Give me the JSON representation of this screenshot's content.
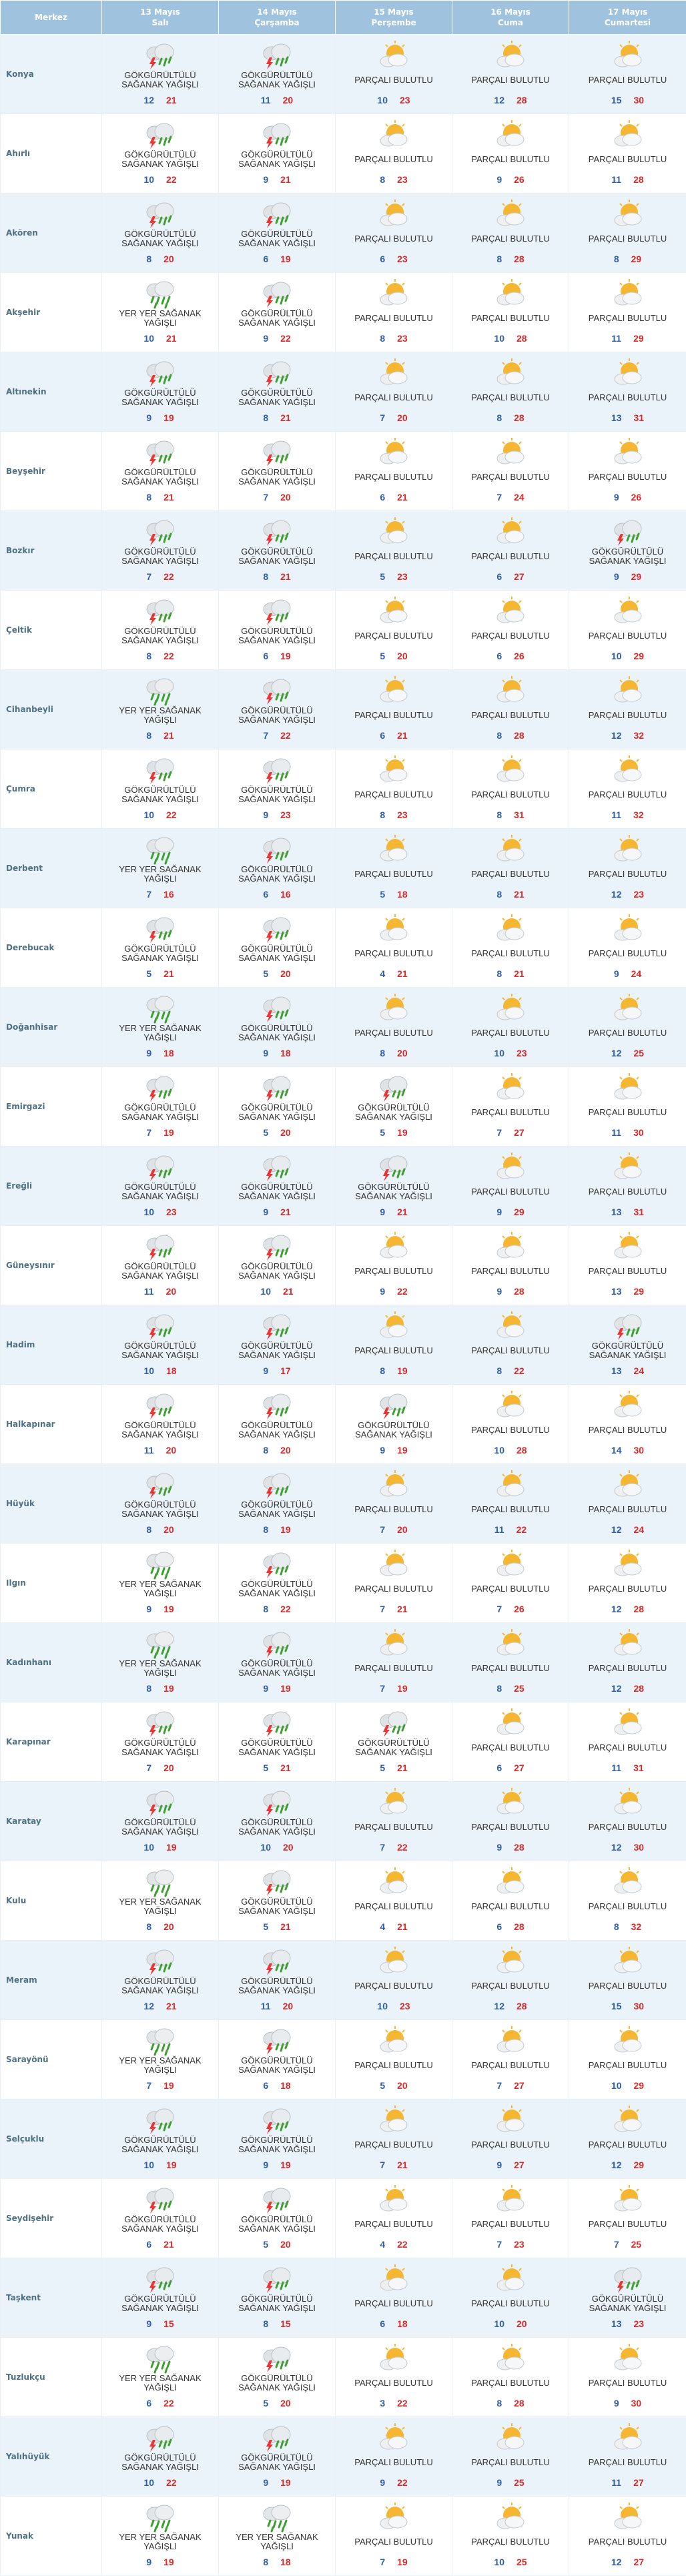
{
  "header": {
    "center_label": "Merkez",
    "days": [
      {
        "date": "13 Mayıs",
        "weekday": "Salı"
      },
      {
        "date": "14 Mayıs",
        "weekday": "Çarşamba"
      },
      {
        "date": "15 Mayıs",
        "weekday": "Perşembe"
      },
      {
        "date": "16 Mayıs",
        "weekday": "Cuma"
      },
      {
        "date": "17 Mayıs",
        "weekday": "Cumartesi"
      }
    ]
  },
  "conditions": {
    "thunder": "GÖKGÜRÜLTÜLÜ SAĞANAK YAĞIŞLI",
    "partly": "PARÇALI BULUTLU",
    "scattered": "YER YER SAĞANAK YAĞIŞLI"
  },
  "icons": {
    "thunder": "thunderstorm-icon",
    "partly": "partly-cloudy-icon",
    "scattered": "rain-showers-icon"
  },
  "rows": [
    {
      "city": "Konya",
      "days": [
        {
          "c": "thunder",
          "min": "12",
          "max": "21"
        },
        {
          "c": "thunder",
          "min": "11",
          "max": "20"
        },
        {
          "c": "partly",
          "min": "10",
          "max": "23"
        },
        {
          "c": "partly",
          "min": "12",
          "max": "28"
        },
        {
          "c": "partly",
          "min": "15",
          "max": "30"
        }
      ]
    },
    {
      "city": "Ahırlı",
      "days": [
        {
          "c": "thunder",
          "min": "10",
          "max": "22"
        },
        {
          "c": "thunder",
          "min": "9",
          "max": "21"
        },
        {
          "c": "partly",
          "min": "8",
          "max": "23"
        },
        {
          "c": "partly",
          "min": "9",
          "max": "26"
        },
        {
          "c": "partly",
          "min": "11",
          "max": "28"
        }
      ]
    },
    {
      "city": "Akören",
      "days": [
        {
          "c": "thunder",
          "min": "8",
          "max": "20"
        },
        {
          "c": "thunder",
          "min": "6",
          "max": "19"
        },
        {
          "c": "partly",
          "min": "6",
          "max": "23"
        },
        {
          "c": "partly",
          "min": "8",
          "max": "28"
        },
        {
          "c": "partly",
          "min": "8",
          "max": "29"
        }
      ]
    },
    {
      "city": "Akşehir",
      "days": [
        {
          "c": "scattered",
          "min": "10",
          "max": "21"
        },
        {
          "c": "thunder",
          "min": "9",
          "max": "22"
        },
        {
          "c": "partly",
          "min": "8",
          "max": "23"
        },
        {
          "c": "partly",
          "min": "10",
          "max": "28"
        },
        {
          "c": "partly",
          "min": "11",
          "max": "29"
        }
      ]
    },
    {
      "city": "Altınekin",
      "days": [
        {
          "c": "thunder",
          "min": "9",
          "max": "19"
        },
        {
          "c": "thunder",
          "min": "8",
          "max": "21"
        },
        {
          "c": "partly",
          "min": "7",
          "max": "20"
        },
        {
          "c": "partly",
          "min": "8",
          "max": "28"
        },
        {
          "c": "partly",
          "min": "13",
          "max": "31"
        }
      ]
    },
    {
      "city": "Beyşehir",
      "days": [
        {
          "c": "thunder",
          "min": "8",
          "max": "21"
        },
        {
          "c": "thunder",
          "min": "7",
          "max": "20"
        },
        {
          "c": "partly",
          "min": "6",
          "max": "21"
        },
        {
          "c": "partly",
          "min": "7",
          "max": "24"
        },
        {
          "c": "partly",
          "min": "9",
          "max": "26"
        }
      ]
    },
    {
      "city": "Bozkır",
      "days": [
        {
          "c": "thunder",
          "min": "7",
          "max": "22"
        },
        {
          "c": "thunder",
          "min": "8",
          "max": "21"
        },
        {
          "c": "partly",
          "min": "5",
          "max": "23"
        },
        {
          "c": "partly",
          "min": "6",
          "max": "27"
        },
        {
          "c": "thunder",
          "min": "9",
          "max": "29"
        }
      ]
    },
    {
      "city": "Çeltik",
      "days": [
        {
          "c": "thunder",
          "min": "8",
          "max": "22"
        },
        {
          "c": "thunder",
          "min": "6",
          "max": "19"
        },
        {
          "c": "partly",
          "min": "5",
          "max": "20"
        },
        {
          "c": "partly",
          "min": "6",
          "max": "26"
        },
        {
          "c": "partly",
          "min": "10",
          "max": "29"
        }
      ]
    },
    {
      "city": "Cihanbeyli",
      "days": [
        {
          "c": "scattered",
          "min": "8",
          "max": "21"
        },
        {
          "c": "thunder",
          "min": "7",
          "max": "22"
        },
        {
          "c": "partly",
          "min": "6",
          "max": "21"
        },
        {
          "c": "partly",
          "min": "8",
          "max": "28"
        },
        {
          "c": "partly",
          "min": "12",
          "max": "32"
        }
      ]
    },
    {
      "city": "Çumra",
      "days": [
        {
          "c": "thunder",
          "min": "10",
          "max": "22"
        },
        {
          "c": "thunder",
          "min": "9",
          "max": "23"
        },
        {
          "c": "partly",
          "min": "8",
          "max": "23"
        },
        {
          "c": "partly",
          "min": "8",
          "max": "31"
        },
        {
          "c": "partly",
          "min": "11",
          "max": "32"
        }
      ]
    },
    {
      "city": "Derbent",
      "days": [
        {
          "c": "scattered",
          "min": "7",
          "max": "16"
        },
        {
          "c": "thunder",
          "min": "6",
          "max": "16"
        },
        {
          "c": "partly",
          "min": "5",
          "max": "18"
        },
        {
          "c": "partly",
          "min": "8",
          "max": "21"
        },
        {
          "c": "partly",
          "min": "12",
          "max": "23"
        }
      ]
    },
    {
      "city": "Derebucak",
      "days": [
        {
          "c": "thunder",
          "min": "5",
          "max": "21"
        },
        {
          "c": "thunder",
          "min": "5",
          "max": "20"
        },
        {
          "c": "partly",
          "min": "4",
          "max": "21"
        },
        {
          "c": "partly",
          "min": "8",
          "max": "21"
        },
        {
          "c": "partly",
          "min": "9",
          "max": "24"
        }
      ]
    },
    {
      "city": "Doğanhisar",
      "days": [
        {
          "c": "scattered",
          "min": "9",
          "max": "18"
        },
        {
          "c": "thunder",
          "min": "9",
          "max": "18"
        },
        {
          "c": "partly",
          "min": "8",
          "max": "20"
        },
        {
          "c": "partly",
          "min": "10",
          "max": "23"
        },
        {
          "c": "partly",
          "min": "12",
          "max": "25"
        }
      ]
    },
    {
      "city": "Emirgazi",
      "days": [
        {
          "c": "thunder",
          "min": "7",
          "max": "19"
        },
        {
          "c": "thunder",
          "min": "5",
          "max": "20"
        },
        {
          "c": "thunder",
          "min": "5",
          "max": "19"
        },
        {
          "c": "partly",
          "min": "7",
          "max": "27"
        },
        {
          "c": "partly",
          "min": "11",
          "max": "30"
        }
      ]
    },
    {
      "city": "Ereğli",
      "days": [
        {
          "c": "thunder",
          "min": "10",
          "max": "23"
        },
        {
          "c": "thunder",
          "min": "9",
          "max": "21"
        },
        {
          "c": "thunder",
          "min": "9",
          "max": "21"
        },
        {
          "c": "partly",
          "min": "9",
          "max": "29"
        },
        {
          "c": "partly",
          "min": "13",
          "max": "31"
        }
      ]
    },
    {
      "city": "Güneysınır",
      "days": [
        {
          "c": "thunder",
          "min": "11",
          "max": "20"
        },
        {
          "c": "thunder",
          "min": "10",
          "max": "21"
        },
        {
          "c": "partly",
          "min": "9",
          "max": "22"
        },
        {
          "c": "partly",
          "min": "9",
          "max": "28"
        },
        {
          "c": "partly",
          "min": "13",
          "max": "29"
        }
      ]
    },
    {
      "city": "Hadim",
      "days": [
        {
          "c": "thunder",
          "min": "10",
          "max": "18"
        },
        {
          "c": "thunder",
          "min": "9",
          "max": "17"
        },
        {
          "c": "partly",
          "min": "8",
          "max": "19"
        },
        {
          "c": "partly",
          "min": "8",
          "max": "22"
        },
        {
          "c": "thunder",
          "min": "13",
          "max": "24"
        }
      ]
    },
    {
      "city": "Halkapınar",
      "days": [
        {
          "c": "thunder",
          "min": "11",
          "max": "20"
        },
        {
          "c": "thunder",
          "min": "8",
          "max": "20"
        },
        {
          "c": "thunder",
          "min": "9",
          "max": "19"
        },
        {
          "c": "partly",
          "min": "10",
          "max": "28"
        },
        {
          "c": "partly",
          "min": "14",
          "max": "30"
        }
      ]
    },
    {
      "city": "Hüyük",
      "days": [
        {
          "c": "thunder",
          "min": "8",
          "max": "20"
        },
        {
          "c": "thunder",
          "min": "8",
          "max": "19"
        },
        {
          "c": "partly",
          "min": "7",
          "max": "20"
        },
        {
          "c": "partly",
          "min": "11",
          "max": "22"
        },
        {
          "c": "partly",
          "min": "12",
          "max": "24"
        }
      ]
    },
    {
      "city": "Ilgın",
      "days": [
        {
          "c": "scattered",
          "min": "9",
          "max": "19"
        },
        {
          "c": "thunder",
          "min": "8",
          "max": "22"
        },
        {
          "c": "partly",
          "min": "7",
          "max": "21"
        },
        {
          "c": "partly",
          "min": "7",
          "max": "26"
        },
        {
          "c": "partly",
          "min": "12",
          "max": "28"
        }
      ]
    },
    {
      "city": "Kadınhanı",
      "days": [
        {
          "c": "scattered",
          "min": "8",
          "max": "19"
        },
        {
          "c": "thunder",
          "min": "9",
          "max": "19"
        },
        {
          "c": "partly",
          "min": "7",
          "max": "19"
        },
        {
          "c": "partly",
          "min": "8",
          "max": "25"
        },
        {
          "c": "partly",
          "min": "12",
          "max": "28"
        }
      ]
    },
    {
      "city": "Karapınar",
      "days": [
        {
          "c": "thunder",
          "min": "7",
          "max": "20"
        },
        {
          "c": "thunder",
          "min": "5",
          "max": "21"
        },
        {
          "c": "thunder",
          "min": "5",
          "max": "21"
        },
        {
          "c": "partly",
          "min": "6",
          "max": "27"
        },
        {
          "c": "partly",
          "min": "11",
          "max": "31"
        }
      ]
    },
    {
      "city": "Karatay",
      "days": [
        {
          "c": "thunder",
          "min": "10",
          "max": "19"
        },
        {
          "c": "thunder",
          "min": "10",
          "max": "20"
        },
        {
          "c": "partly",
          "min": "7",
          "max": "22"
        },
        {
          "c": "partly",
          "min": "9",
          "max": "28"
        },
        {
          "c": "partly",
          "min": "12",
          "max": "30"
        }
      ]
    },
    {
      "city": "Kulu",
      "days": [
        {
          "c": "scattered",
          "min": "8",
          "max": "20"
        },
        {
          "c": "thunder",
          "min": "5",
          "max": "21"
        },
        {
          "c": "partly",
          "min": "4",
          "max": "21"
        },
        {
          "c": "partly",
          "min": "6",
          "max": "28"
        },
        {
          "c": "partly",
          "min": "8",
          "max": "32"
        }
      ]
    },
    {
      "city": "Meram",
      "days": [
        {
          "c": "thunder",
          "min": "12",
          "max": "21"
        },
        {
          "c": "thunder",
          "min": "11",
          "max": "20"
        },
        {
          "c": "partly",
          "min": "10",
          "max": "23"
        },
        {
          "c": "partly",
          "min": "12",
          "max": "28"
        },
        {
          "c": "partly",
          "min": "15",
          "max": "30"
        }
      ]
    },
    {
      "city": "Sarayönü",
      "days": [
        {
          "c": "scattered",
          "min": "7",
          "max": "19"
        },
        {
          "c": "thunder",
          "min": "6",
          "max": "18"
        },
        {
          "c": "partly",
          "min": "5",
          "max": "20"
        },
        {
          "c": "partly",
          "min": "7",
          "max": "27"
        },
        {
          "c": "partly",
          "min": "10",
          "max": "29"
        }
      ]
    },
    {
      "city": "Selçuklu",
      "days": [
        {
          "c": "thunder",
          "min": "10",
          "max": "19"
        },
        {
          "c": "thunder",
          "min": "9",
          "max": "19"
        },
        {
          "c": "partly",
          "min": "7",
          "max": "21"
        },
        {
          "c": "partly",
          "min": "9",
          "max": "27"
        },
        {
          "c": "partly",
          "min": "12",
          "max": "29"
        }
      ]
    },
    {
      "city": "Seydişehir",
      "days": [
        {
          "c": "thunder",
          "min": "6",
          "max": "21"
        },
        {
          "c": "thunder",
          "min": "5",
          "max": "20"
        },
        {
          "c": "partly",
          "min": "4",
          "max": "22"
        },
        {
          "c": "partly",
          "min": "7",
          "max": "23"
        },
        {
          "c": "partly",
          "min": "7",
          "max": "25"
        }
      ]
    },
    {
      "city": "Taşkent",
      "days": [
        {
          "c": "thunder",
          "min": "9",
          "max": "15"
        },
        {
          "c": "thunder",
          "min": "8",
          "max": "15"
        },
        {
          "c": "partly",
          "min": "6",
          "max": "18"
        },
        {
          "c": "partly",
          "min": "10",
          "max": "20"
        },
        {
          "c": "thunder",
          "min": "13",
          "max": "23"
        }
      ]
    },
    {
      "city": "Tuzlukçu",
      "days": [
        {
          "c": "scattered",
          "min": "6",
          "max": "22"
        },
        {
          "c": "thunder",
          "min": "5",
          "max": "20"
        },
        {
          "c": "partly",
          "min": "3",
          "max": "22"
        },
        {
          "c": "partly",
          "min": "8",
          "max": "28"
        },
        {
          "c": "partly",
          "min": "9",
          "max": "30"
        }
      ]
    },
    {
      "city": "Yalıhüyük",
      "days": [
        {
          "c": "thunder",
          "min": "10",
          "max": "22"
        },
        {
          "c": "thunder",
          "min": "9",
          "max": "19"
        },
        {
          "c": "partly",
          "min": "9",
          "max": "22"
        },
        {
          "c": "partly",
          "min": "9",
          "max": "25"
        },
        {
          "c": "partly",
          "min": "11",
          "max": "27"
        }
      ]
    },
    {
      "city": "Yunak",
      "days": [
        {
          "c": "scattered",
          "min": "9",
          "max": "19"
        },
        {
          "c": "scattered",
          "min": "8",
          "max": "18"
        },
        {
          "c": "partly",
          "min": "7",
          "max": "19"
        },
        {
          "c": "partly",
          "min": "10",
          "max": "25"
        },
        {
          "c": "partly",
          "min": "12",
          "max": "27"
        }
      ]
    }
  ]
}
